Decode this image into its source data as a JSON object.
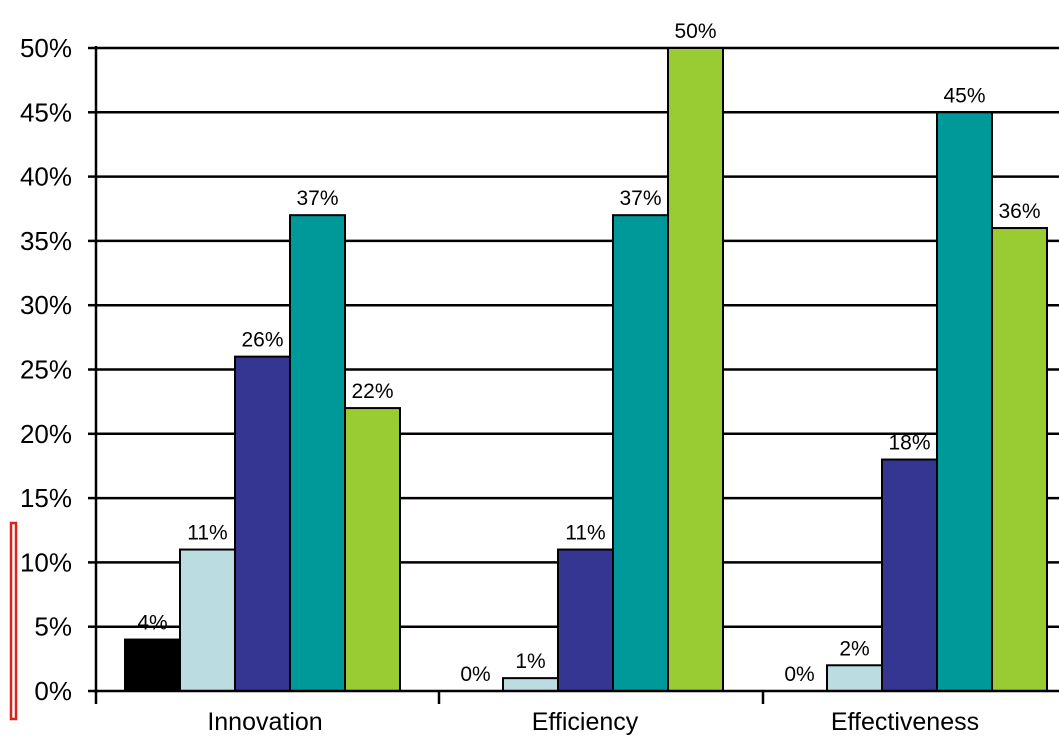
{
  "chart_data": {
    "type": "bar",
    "categories": [
      "Innovation",
      "Efficiency",
      "Effectiveness"
    ],
    "series": [
      {
        "color": "#000000",
        "values": [
          4,
          0,
          0
        ]
      },
      {
        "color": "#BBDDE2",
        "values": [
          11,
          1,
          2
        ]
      },
      {
        "color": "#353592",
        "values": [
          26,
          11,
          18
        ]
      },
      {
        "color": "#009999",
        "values": [
          37,
          37,
          45
        ]
      },
      {
        "color": "#99CC33",
        "values": [
          22,
          50,
          36
        ]
      }
    ],
    "data_labels": [
      [
        "4%",
        "0%",
        "0%"
      ],
      [
        "11%",
        "1%",
        "2%"
      ],
      [
        "26%",
        "11%",
        "18%"
      ],
      [
        "37%",
        "37%",
        "45%"
      ],
      [
        "22%",
        "50%",
        "36%"
      ]
    ],
    "yticks": [
      0,
      5,
      10,
      15,
      20,
      25,
      30,
      35,
      40,
      45,
      50
    ],
    "ytick_labels": [
      "0%",
      "5%",
      "10%",
      "15%",
      "20%",
      "25%",
      "30%",
      "35%",
      "40%",
      "45%",
      "50%"
    ],
    "ylim": [
      0,
      50
    ],
    "grid": true,
    "title": "",
    "xlabel": "",
    "ylabel": ""
  }
}
